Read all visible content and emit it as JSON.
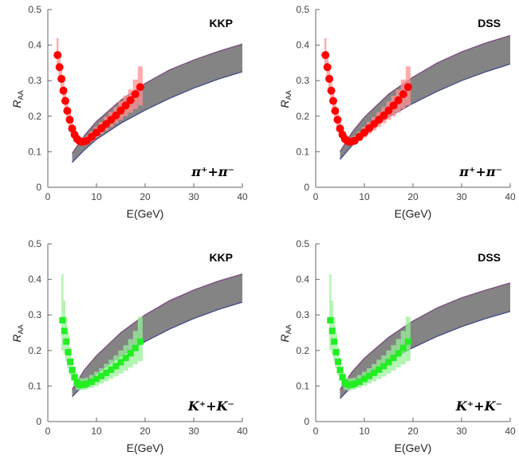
{
  "colors": {
    "band_fill": "#7a7a7a",
    "band_upper_edge": "#7b4a7e",
    "band_lower_edge": "#3e4a8c",
    "pion": "#ff0000",
    "pion_box": "#ff9090",
    "kaon": "#22ee22",
    "kaon_box": "#99f099",
    "axis": "#666666"
  },
  "chart_data": [
    {
      "type": "scatter",
      "panel": "top-left",
      "model_label": "KKP",
      "particle_label": "π⁺+π⁻",
      "marker": "circle",
      "xlabel": "E(GeV)",
      "ylabel": "R_AA",
      "xlim": [
        0,
        40
      ],
      "ylim": [
        0,
        0.5
      ],
      "xticks": [
        "0",
        "10",
        "20",
        "30",
        "40"
      ],
      "yticks": [
        "0",
        "0.1",
        "0.2",
        "0.3",
        "0.4",
        "0.5"
      ],
      "points": {
        "x": [
          2,
          2.4,
          2.8,
          3.2,
          3.6,
          4.0,
          4.5,
          5.0,
          5.5,
          6.0,
          6.5,
          7.0,
          7.5,
          8.0,
          9,
          10,
          11,
          12,
          13,
          14,
          15,
          16,
          17,
          18,
          19
        ],
        "y": [
          0.372,
          0.338,
          0.305,
          0.272,
          0.243,
          0.215,
          0.19,
          0.165,
          0.148,
          0.136,
          0.13,
          0.128,
          0.129,
          0.131,
          0.142,
          0.154,
          0.166,
          0.178,
          0.19,
          0.202,
          0.216,
          0.23,
          0.245,
          0.262,
          0.282
        ],
        "box_low": [
          0.33,
          0.31,
          0.28,
          0.25,
          0.22,
          0.19,
          0.17,
          0.15,
          0.135,
          0.125,
          0.12,
          0.118,
          0.118,
          0.12,
          0.13,
          0.14,
          0.15,
          0.16,
          0.17,
          0.18,
          0.19,
          0.2,
          0.21,
          0.22,
          0.23
        ],
        "box_high": [
          0.42,
          0.37,
          0.33,
          0.295,
          0.265,
          0.235,
          0.21,
          0.185,
          0.162,
          0.148,
          0.142,
          0.14,
          0.142,
          0.145,
          0.156,
          0.17,
          0.184,
          0.198,
          0.212,
          0.226,
          0.242,
          0.258,
          0.275,
          0.303,
          0.34
        ]
      },
      "band": {
        "x": [
          5,
          7.5,
          10,
          15,
          20,
          25,
          30,
          35,
          40
        ],
        "lower": [
          0.07,
          0.105,
          0.135,
          0.18,
          0.217,
          0.25,
          0.279,
          0.304,
          0.325
        ],
        "upper": [
          0.095,
          0.145,
          0.185,
          0.245,
          0.292,
          0.33,
          0.358,
          0.382,
          0.403
        ]
      }
    },
    {
      "type": "scatter",
      "panel": "top-right",
      "model_label": "DSS",
      "particle_label": "π⁺+π⁻",
      "marker": "circle",
      "xlabel": "E(GeV)",
      "ylabel": "R_AA",
      "xlim": [
        0,
        40
      ],
      "ylim": [
        0,
        0.5
      ],
      "xticks": [
        "0",
        "10",
        "20",
        "30",
        "40"
      ],
      "yticks": [
        "0",
        "0.1",
        "0.2",
        "0.3",
        "0.4",
        "0.5"
      ],
      "points": {
        "x": [
          2,
          2.4,
          2.8,
          3.2,
          3.6,
          4.0,
          4.5,
          5.0,
          5.5,
          6.0,
          6.5,
          7.0,
          7.5,
          8.0,
          9,
          10,
          11,
          12,
          13,
          14,
          15,
          16,
          17,
          18,
          19
        ],
        "y": [
          0.372,
          0.338,
          0.305,
          0.272,
          0.243,
          0.215,
          0.19,
          0.165,
          0.148,
          0.136,
          0.13,
          0.128,
          0.129,
          0.131,
          0.142,
          0.154,
          0.166,
          0.178,
          0.19,
          0.202,
          0.216,
          0.23,
          0.245,
          0.262,
          0.282
        ],
        "box_low": [
          0.33,
          0.31,
          0.28,
          0.25,
          0.22,
          0.19,
          0.17,
          0.15,
          0.135,
          0.125,
          0.12,
          0.118,
          0.118,
          0.12,
          0.13,
          0.14,
          0.15,
          0.16,
          0.17,
          0.18,
          0.19,
          0.2,
          0.21,
          0.22,
          0.23
        ],
        "box_high": [
          0.42,
          0.37,
          0.33,
          0.295,
          0.265,
          0.235,
          0.21,
          0.185,
          0.162,
          0.148,
          0.142,
          0.14,
          0.142,
          0.145,
          0.156,
          0.17,
          0.184,
          0.198,
          0.212,
          0.226,
          0.242,
          0.258,
          0.275,
          0.303,
          0.34
        ]
      },
      "band": {
        "x": [
          5,
          7.5,
          10,
          15,
          20,
          25,
          30,
          35,
          40
        ],
        "lower": [
          0.078,
          0.118,
          0.15,
          0.198,
          0.236,
          0.27,
          0.3,
          0.325,
          0.347
        ],
        "upper": [
          0.1,
          0.155,
          0.197,
          0.262,
          0.31,
          0.35,
          0.381,
          0.406,
          0.427
        ]
      }
    },
    {
      "type": "scatter",
      "panel": "bottom-left",
      "model_label": "KKP",
      "particle_label": "K⁺+K⁻",
      "marker": "square",
      "xlabel": "E(GeV)",
      "ylabel": "R_AA",
      "xlim": [
        0,
        40
      ],
      "ylim": [
        0,
        0.5
      ],
      "xticks": [
        "0",
        "10",
        "20",
        "30",
        "40"
      ],
      "yticks": [
        "0",
        "0.1",
        "0.2",
        "0.3",
        "0.4",
        "0.5"
      ],
      "points": {
        "x": [
          3.0,
          3.4,
          3.8,
          4.2,
          4.6,
          5.0,
          5.5,
          6.0,
          6.5,
          7.0,
          7.5,
          8.0,
          9,
          10,
          11,
          12,
          13,
          14,
          15,
          16,
          17,
          18,
          19
        ],
        "y": [
          0.285,
          0.255,
          0.225,
          0.195,
          0.168,
          0.145,
          0.125,
          0.11,
          0.104,
          0.103,
          0.104,
          0.106,
          0.112,
          0.12,
          0.128,
          0.137,
          0.146,
          0.156,
          0.167,
          0.179,
          0.192,
          0.207,
          0.225
        ],
        "box_low": [
          0.2,
          0.19,
          0.17,
          0.15,
          0.13,
          0.115,
          0.1,
          0.09,
          0.088,
          0.088,
          0.089,
          0.09,
          0.095,
          0.1,
          0.107,
          0.113,
          0.12,
          0.127,
          0.135,
          0.143,
          0.152,
          0.161,
          0.17
        ],
        "box_high": [
          0.415,
          0.34,
          0.295,
          0.25,
          0.21,
          0.18,
          0.155,
          0.132,
          0.124,
          0.121,
          0.122,
          0.124,
          0.131,
          0.14,
          0.15,
          0.162,
          0.174,
          0.186,
          0.2,
          0.215,
          0.232,
          0.255,
          0.295
        ]
      },
      "band": {
        "x": [
          5,
          7.5,
          10,
          15,
          20,
          25,
          30,
          35,
          40
        ],
        "lower": [
          0.07,
          0.105,
          0.135,
          0.185,
          0.225,
          0.26,
          0.29,
          0.315,
          0.336
        ],
        "upper": [
          0.09,
          0.145,
          0.185,
          0.25,
          0.3,
          0.34,
          0.37,
          0.395,
          0.415
        ]
      }
    },
    {
      "type": "scatter",
      "panel": "bottom-right",
      "model_label": "DSS",
      "particle_label": "K⁺+K⁻",
      "marker": "square",
      "xlabel": "E(GeV)",
      "ylabel": "R_AA",
      "xlim": [
        0,
        40
      ],
      "ylim": [
        0,
        0.5
      ],
      "xticks": [
        "0",
        "10",
        "20",
        "30",
        "40"
      ],
      "yticks": [
        "0",
        "0.1",
        "0.2",
        "0.3",
        "0.4",
        "0.5"
      ],
      "points": {
        "x": [
          3.0,
          3.4,
          3.8,
          4.2,
          4.6,
          5.0,
          5.5,
          6.0,
          6.5,
          7.0,
          7.5,
          8.0,
          9,
          10,
          11,
          12,
          13,
          14,
          15,
          16,
          17,
          18,
          19
        ],
        "y": [
          0.285,
          0.255,
          0.225,
          0.195,
          0.168,
          0.145,
          0.125,
          0.11,
          0.104,
          0.103,
          0.104,
          0.106,
          0.112,
          0.12,
          0.128,
          0.137,
          0.146,
          0.156,
          0.167,
          0.179,
          0.192,
          0.207,
          0.225
        ],
        "box_low": [
          0.2,
          0.19,
          0.17,
          0.15,
          0.13,
          0.115,
          0.1,
          0.09,
          0.088,
          0.088,
          0.089,
          0.09,
          0.095,
          0.1,
          0.107,
          0.113,
          0.12,
          0.127,
          0.135,
          0.143,
          0.152,
          0.161,
          0.17
        ],
        "box_high": [
          0.415,
          0.34,
          0.295,
          0.25,
          0.21,
          0.18,
          0.155,
          0.132,
          0.124,
          0.121,
          0.122,
          0.124,
          0.131,
          0.14,
          0.15,
          0.162,
          0.174,
          0.186,
          0.2,
          0.215,
          0.232,
          0.255,
          0.295
        ]
      },
      "band": {
        "x": [
          5,
          7.5,
          10,
          15,
          20,
          25,
          30,
          35,
          40
        ],
        "lower": [
          0.065,
          0.1,
          0.128,
          0.172,
          0.208,
          0.24,
          0.267,
          0.29,
          0.31
        ],
        "upper": [
          0.09,
          0.14,
          0.178,
          0.237,
          0.283,
          0.32,
          0.348,
          0.37,
          0.39
        ]
      }
    }
  ]
}
